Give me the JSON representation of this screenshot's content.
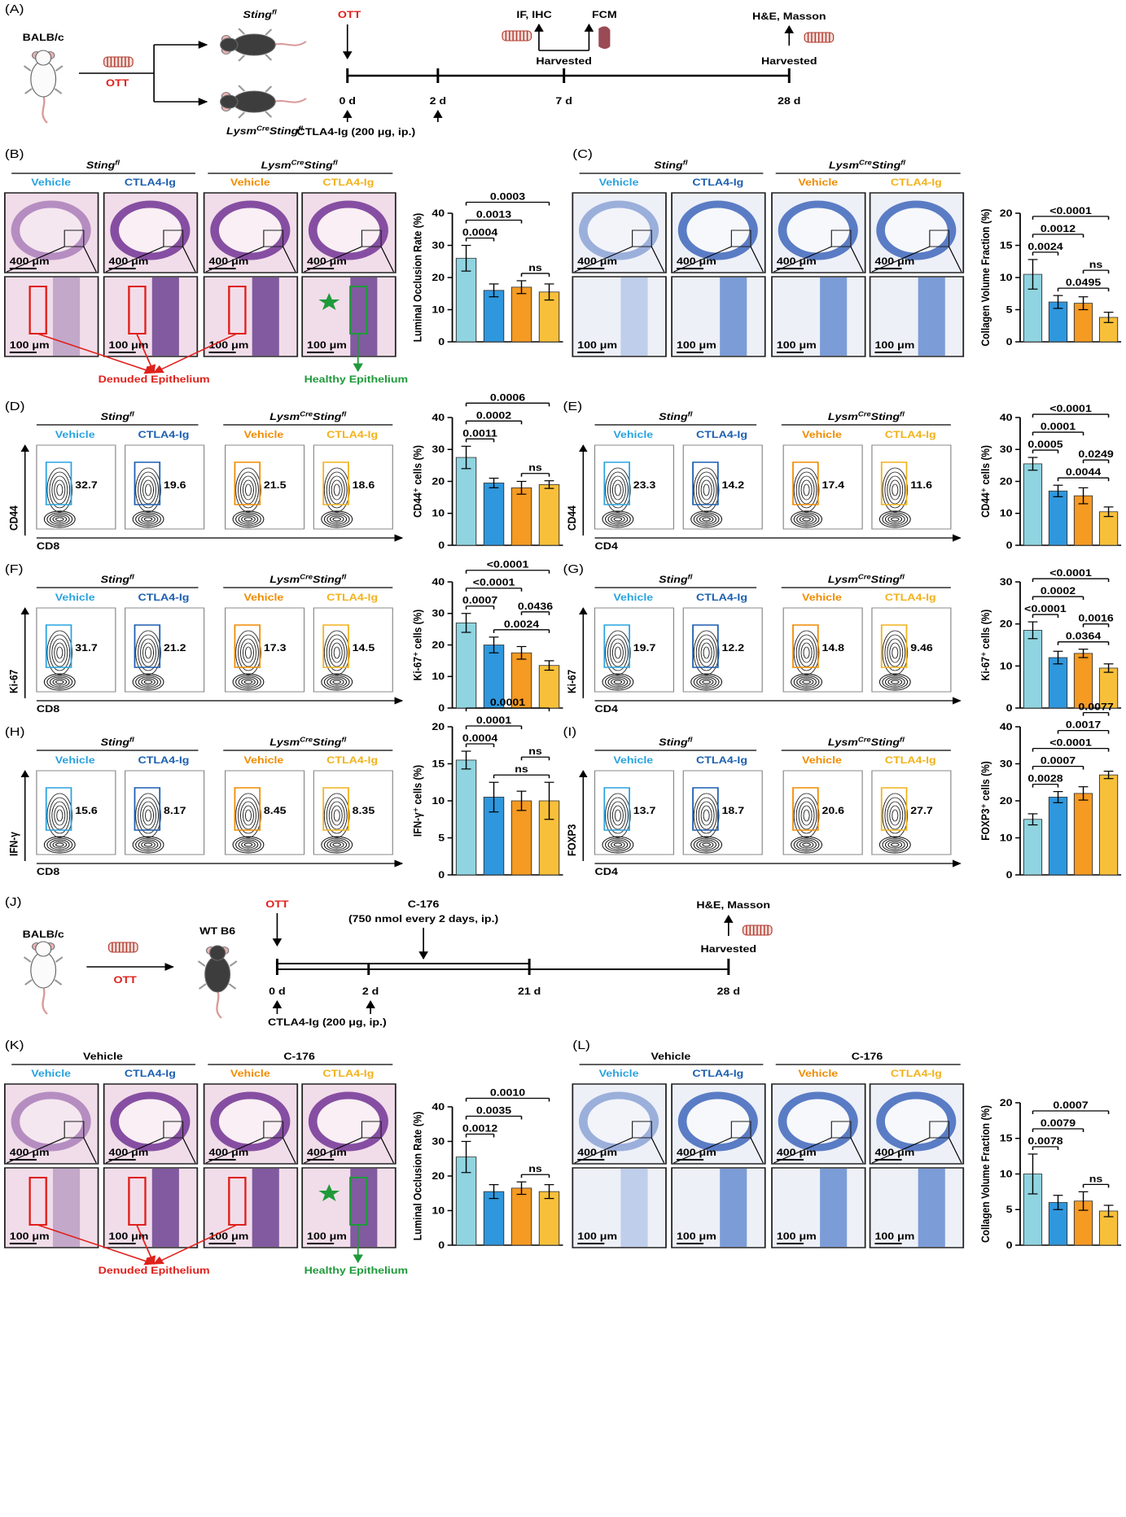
{
  "group_colors": [
    "#29a3e0",
    "#1c5fb0",
    "#f08c00",
    "#f2b21b"
  ],
  "panel_a": {
    "label": "(A)",
    "mouse": "BALB/c",
    "ott_left": "OTT",
    "genotype_top": [
      "Sting",
      "fl"
    ],
    "genotype_bottom": [
      "Lysm",
      "Cre",
      "Sting",
      "fl"
    ],
    "ott_timeline": "OTT",
    "if_ihc": "IF, IHC",
    "fcm": "FCM",
    "harvested_7": "Harvested",
    "he_masson": "H&E, Masson",
    "harvested_28": "Harvested",
    "days": [
      "0 d",
      "2 d",
      "7 d",
      "28 d"
    ],
    "treatment": "CTLA4-Ig (200 μg, ip.)"
  },
  "panel_j": {
    "label": "(J)",
    "mouse": "BALB/c",
    "ott": "OTT",
    "recipient": "WT B6",
    "ott_timeline": "OTT",
    "drug": "C-176",
    "drug_dose": "(750 nmol every 2 days, ip.)",
    "he_masson": "H&E, Masson",
    "harvested": "Harvested",
    "days": [
      "0 d",
      "2 d",
      "21 d",
      "28 d"
    ],
    "treatment": "CTLA4-Ig (200 μg, ip.)"
  },
  "histology_panels": [
    {
      "label": "(B)",
      "header_left": [
        "Sting",
        "fl"
      ],
      "header_right": [
        "Lysm",
        "Cre",
        "Sting",
        "fl"
      ],
      "groups": [
        "Vehicle",
        "CTLA4-Ig",
        "Vehicle",
        "CTLA4-Ig"
      ],
      "scale_low": "400 μm",
      "scale_high": "100 μm",
      "annotations": [
        "Denuded Epithelium",
        "Healthy Epithelium"
      ]
    },
    {
      "label": "(C)",
      "header_left": [
        "Sting",
        "fl"
      ],
      "header_right": [
        "Lysm",
        "Cre",
        "Sting",
        "fl"
      ],
      "groups": [
        "Vehicle",
        "CTLA4-Ig",
        "Vehicle",
        "CTLA4-Ig"
      ],
      "scale_low": "400 μm",
      "scale_high": "100 μm"
    },
    {
      "label": "(K)",
      "header_left": [
        "Vehicle"
      ],
      "header_right": [
        "C-176"
      ],
      "groups": [
        "Vehicle",
        "CTLA4-Ig",
        "Vehicle",
        "CTLA4-Ig"
      ],
      "scale_low": "400 μm",
      "scale_high": "100 μm",
      "annotations": [
        "Denuded Epithelium",
        "Healthy Epithelium"
      ]
    },
    {
      "label": "(L)",
      "header_left": [
        "Vehicle"
      ],
      "header_right": [
        "C-176"
      ],
      "groups": [
        "Vehicle",
        "CTLA4-Ig",
        "Vehicle",
        "CTLA4-Ig"
      ],
      "scale_low": "400 μm",
      "scale_high": "100 μm"
    }
  ],
  "flow_panels": [
    {
      "label": "(D)",
      "header_left": [
        "Sting",
        "fl"
      ],
      "header_right": [
        "Lysm",
        "Cre",
        "Sting",
        "fl"
      ],
      "groups": [
        "Vehicle",
        "CTLA4-Ig",
        "Vehicle",
        "CTLA4-Ig"
      ],
      "gates": [
        32.7,
        19.6,
        21.5,
        18.6
      ],
      "x_label": "CD8",
      "y_label": "CD44"
    },
    {
      "label": "(E)",
      "header_left": [
        "Sting",
        "fl"
      ],
      "header_right": [
        "Lysm",
        "Cre",
        "Sting",
        "fl"
      ],
      "groups": [
        "Vehicle",
        "CTLA4-Ig",
        "Vehicle",
        "CTLA4-Ig"
      ],
      "gates": [
        23.3,
        14.2,
        17.4,
        11.6
      ],
      "x_label": "CD4",
      "y_label": "CD44"
    },
    {
      "label": "(F)",
      "header_left": [
        "Sting",
        "fl"
      ],
      "header_right": [
        "Lysm",
        "Cre",
        "Sting",
        "fl"
      ],
      "groups": [
        "Vehicle",
        "CTLA4-Ig",
        "Vehicle",
        "CTLA4-Ig"
      ],
      "gates": [
        31.7,
        21.2,
        17.3,
        14.5
      ],
      "x_label": "CD8",
      "y_label": "Ki-67"
    },
    {
      "label": "(G)",
      "header_left": [
        "Sting",
        "fl"
      ],
      "header_right": [
        "Lysm",
        "Cre",
        "Sting",
        "fl"
      ],
      "groups": [
        "Vehicle",
        "CTLA4-Ig",
        "Vehicle",
        "CTLA4-Ig"
      ],
      "gates": [
        19.7,
        12.2,
        14.8,
        9.46
      ],
      "x_label": "CD4",
      "y_label": "Ki-67"
    },
    {
      "label": "(H)",
      "header_left": [
        "Sting",
        "fl"
      ],
      "header_right": [
        "Lysm",
        "Cre",
        "Sting",
        "fl"
      ],
      "groups": [
        "Vehicle",
        "CTLA4-Ig",
        "Vehicle",
        "CTLA4-Ig"
      ],
      "gates": [
        15.6,
        8.17,
        8.45,
        8.35
      ],
      "x_label": "CD8",
      "y_label": "IFN-γ"
    },
    {
      "label": "(I)",
      "header_left": [
        "Sting",
        "fl"
      ],
      "header_right": [
        "Lysm",
        "Cre",
        "Sting",
        "fl"
      ],
      "groups": [
        "Vehicle",
        "CTLA4-Ig",
        "Vehicle",
        "CTLA4-Ig"
      ],
      "gates": [
        13.7,
        18.7,
        20.6,
        27.7
      ],
      "x_label": "CD4",
      "y_label": "FOXP3"
    }
  ],
  "chart_data": [
    {
      "type": "bar",
      "y_label": "Luminal Occlusion Rate (%)",
      "values": [
        26,
        16,
        17,
        15.5
      ],
      "errors": [
        4,
        2,
        2,
        2.5
      ],
      "colors": [
        "#8fd4e0",
        "#2f97dd",
        "#f59a23",
        "#f8c03a"
      ],
      "ylim": [
        0,
        40
      ],
      "yticks": [
        0,
        10,
        20,
        30,
        40
      ],
      "comparisons": [
        {
          "label": "ns",
          "bars": [
            2,
            3
          ]
        },
        {
          "label": "0.0004",
          "bars": [
            0,
            1
          ]
        },
        {
          "label": "0.0013",
          "bars": [
            0,
            2
          ]
        },
        {
          "label": "0.0003",
          "bars": [
            0,
            3
          ]
        }
      ]
    },
    {
      "type": "bar",
      "y_label": "Collagen Volume Fraction (%)",
      "values": [
        10.5,
        6.2,
        6,
        3.8
      ],
      "errors": [
        2.3,
        1,
        1,
        0.8
      ],
      "colors": [
        "#8fd4e0",
        "#2f97dd",
        "#f59a23",
        "#f8c03a"
      ],
      "ylim": [
        0,
        20
      ],
      "yticks": [
        0,
        5,
        10,
        15,
        20
      ],
      "comparisons": [
        {
          "label": "0.0495",
          "bars": [
            1,
            3
          ]
        },
        {
          "label": "ns",
          "bars": [
            2,
            3
          ]
        },
        {
          "label": "0.0024",
          "bars": [
            0,
            1
          ]
        },
        {
          "label": "0.0012",
          "bars": [
            0,
            2
          ]
        },
        {
          "label": "<0.0001",
          "bars": [
            0,
            3
          ]
        }
      ]
    },
    {
      "type": "bar",
      "y_label": "CD44⁺ cells (%)",
      "values": [
        27.5,
        19.5,
        18,
        19
      ],
      "errors": [
        3.5,
        1.5,
        2,
        1.2
      ],
      "colors": [
        "#8fd4e0",
        "#2f97dd",
        "#f59a23",
        "#f8c03a"
      ],
      "ylim": [
        0,
        40
      ],
      "yticks": [
        0,
        10,
        20,
        30,
        40
      ],
      "comparisons": [
        {
          "label": "ns",
          "bars": [
            2,
            3
          ]
        },
        {
          "label": "0.0011",
          "bars": [
            0,
            1
          ]
        },
        {
          "label": "0.0002",
          "bars": [
            0,
            2
          ]
        },
        {
          "label": "0.0006",
          "bars": [
            0,
            3
          ]
        }
      ]
    },
    {
      "type": "bar",
      "y_label": "CD44⁺ cells (%)",
      "values": [
        25.5,
        17,
        15.5,
        10.5
      ],
      "errors": [
        2,
        1.8,
        2.5,
        1.5
      ],
      "colors": [
        "#8fd4e0",
        "#2f97dd",
        "#f59a23",
        "#f8c03a"
      ],
      "ylim": [
        0,
        40
      ],
      "yticks": [
        0,
        10,
        20,
        30,
        40
      ],
      "comparisons": [
        {
          "label": "0.0044",
          "bars": [
            1,
            3
          ]
        },
        {
          "label": "0.0249",
          "bars": [
            2,
            3
          ]
        },
        {
          "label": "0.0005",
          "bars": [
            0,
            1
          ]
        },
        {
          "label": "0.0001",
          "bars": [
            0,
            2
          ]
        },
        {
          "label": "<0.0001",
          "bars": [
            0,
            3
          ]
        }
      ]
    },
    {
      "type": "bar",
      "y_label": "Ki-67⁺ cells (%)",
      "values": [
        27,
        20,
        17.5,
        13.5
      ],
      "errors": [
        3,
        2.5,
        2,
        1.5
      ],
      "colors": [
        "#8fd4e0",
        "#2f97dd",
        "#f59a23",
        "#f8c03a"
      ],
      "ylim": [
        0,
        40
      ],
      "yticks": [
        0,
        10,
        20,
        30,
        40
      ],
      "comparisons": [
        {
          "label": "0.0024",
          "bars": [
            1,
            3
          ]
        },
        {
          "label": "0.0436",
          "bars": [
            2,
            3
          ]
        },
        {
          "label": "0.0007",
          "bars": [
            0,
            1
          ]
        },
        {
          "label": "<0.0001",
          "bars": [
            0,
            2
          ]
        },
        {
          "label": "<0.0001",
          "bars": [
            0,
            3
          ]
        }
      ]
    },
    {
      "type": "bar",
      "y_label": "Ki-67⁺ cells (%)",
      "values": [
        18.5,
        12,
        13,
        9.5
      ],
      "errors": [
        2,
        1.5,
        1,
        1
      ],
      "colors": [
        "#8fd4e0",
        "#2f97dd",
        "#f59a23",
        "#f8c03a"
      ],
      "ylim": [
        0,
        30
      ],
      "yticks": [
        0,
        10,
        20,
        30
      ],
      "comparisons": [
        {
          "label": "0.0364",
          "bars": [
            1,
            3
          ]
        },
        {
          "label": "0.0016",
          "bars": [
            2,
            3
          ]
        },
        {
          "label": "<0.0001",
          "bars": [
            0,
            1
          ]
        },
        {
          "label": "0.0002",
          "bars": [
            0,
            2
          ]
        },
        {
          "label": "<0.0001",
          "bars": [
            0,
            3
          ]
        }
      ]
    },
    {
      "type": "bar",
      "y_label": "IFN-γ⁺ cells (%)",
      "values": [
        15.5,
        10.5,
        10,
        10
      ],
      "errors": [
        1.2,
        2,
        1.3,
        2.5
      ],
      "colors": [
        "#8fd4e0",
        "#2f97dd",
        "#f59a23",
        "#f8c03a"
      ],
      "ylim": [
        0,
        20
      ],
      "yticks": [
        0,
        5,
        10,
        15,
        20
      ],
      "comparisons": [
        {
          "label": "ns",
          "bars": [
            1,
            3
          ]
        },
        {
          "label": "ns",
          "bars": [
            2,
            3
          ]
        },
        {
          "label": "0.0004",
          "bars": [
            0,
            1
          ]
        },
        {
          "label": "0.0001",
          "bars": [
            0,
            2
          ]
        },
        {
          "label": "0.0001",
          "bars": [
            0,
            3
          ]
        }
      ]
    },
    {
      "type": "bar",
      "y_label": "FOXP3⁺ cells (%)",
      "values": [
        15,
        21,
        22,
        27
      ],
      "errors": [
        1.5,
        1.5,
        1.8,
        1
      ],
      "colors": [
        "#8fd4e0",
        "#2f97dd",
        "#f59a23",
        "#f8c03a"
      ],
      "ylim": [
        0,
        40
      ],
      "yticks": [
        0,
        10,
        20,
        30,
        40
      ],
      "comparisons": [
        {
          "label": "0.0028",
          "bars": [
            0,
            1
          ]
        },
        {
          "label": "0.0007",
          "bars": [
            0,
            2
          ]
        },
        {
          "label": "<0.0001",
          "bars": [
            0,
            3
          ]
        },
        {
          "label": "0.0017",
          "bars": [
            1,
            3
          ]
        },
        {
          "label": "0.0077",
          "bars": [
            2,
            3
          ]
        }
      ]
    },
    {
      "type": "bar",
      "y_label": "Luminal Occlusion Rate (%)",
      "values": [
        25.5,
        15.5,
        16.5,
        15.5
      ],
      "errors": [
        4.5,
        2,
        1.8,
        2
      ],
      "colors": [
        "#8fd4e0",
        "#2f97dd",
        "#f59a23",
        "#f8c03a"
      ],
      "ylim": [
        0,
        40
      ],
      "yticks": [
        0,
        10,
        20,
        30,
        40
      ],
      "comparisons": [
        {
          "label": "ns",
          "bars": [
            2,
            3
          ]
        },
        {
          "label": "0.0012",
          "bars": [
            0,
            1
          ]
        },
        {
          "label": "0.0035",
          "bars": [
            0,
            2
          ]
        },
        {
          "label": "0.0010",
          "bars": [
            0,
            3
          ]
        }
      ]
    },
    {
      "type": "bar",
      "y_label": "Collagen Volume Fraction (%)",
      "values": [
        10,
        6,
        6.2,
        4.8
      ],
      "errors": [
        2.8,
        1,
        1.3,
        0.8
      ],
      "colors": [
        "#8fd4e0",
        "#2f97dd",
        "#f59a23",
        "#f8c03a"
      ],
      "ylim": [
        0,
        20
      ],
      "yticks": [
        0,
        5,
        10,
        15,
        20
      ],
      "comparisons": [
        {
          "label": "ns",
          "bars": [
            2,
            3
          ]
        },
        {
          "label": "0.0078",
          "bars": [
            0,
            1
          ]
        },
        {
          "label": "0.0079",
          "bars": [
            0,
            2
          ]
        },
        {
          "label": "0.0007",
          "bars": [
            0,
            3
          ]
        }
      ]
    }
  ]
}
